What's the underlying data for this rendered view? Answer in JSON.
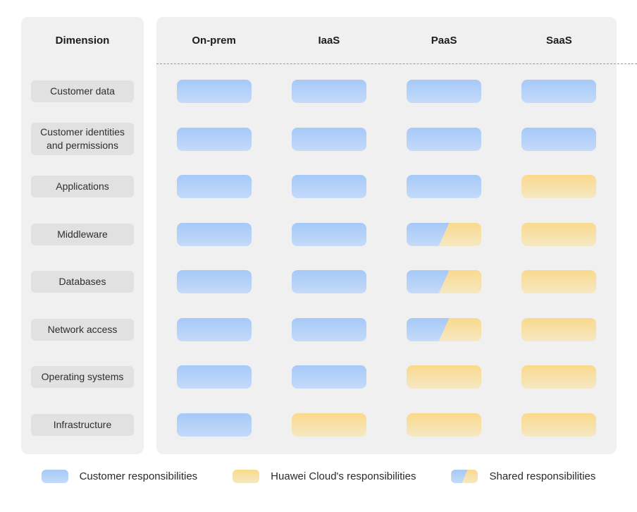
{
  "header": {
    "dimension_label": "Dimension",
    "columns": [
      "On-prem",
      "IaaS",
      "PaaS",
      "SaaS"
    ]
  },
  "rows": [
    {
      "label": "Customer data",
      "cells": [
        "customer",
        "customer",
        "customer",
        "customer"
      ]
    },
    {
      "label": "Customer identities and permissions",
      "cells": [
        "customer",
        "customer",
        "customer",
        "customer"
      ]
    },
    {
      "label": "Applications",
      "cells": [
        "customer",
        "customer",
        "customer",
        "huawei"
      ]
    },
    {
      "label": "Middleware",
      "cells": [
        "customer",
        "customer",
        "shared",
        "huawei"
      ]
    },
    {
      "label": "Databases",
      "cells": [
        "customer",
        "customer",
        "shared",
        "huawei"
      ]
    },
    {
      "label": "Network access",
      "cells": [
        "customer",
        "customer",
        "shared",
        "huawei"
      ]
    },
    {
      "label": "Operating systems",
      "cells": [
        "customer",
        "customer",
        "huawei",
        "huawei"
      ]
    },
    {
      "label": "Infrastructure",
      "cells": [
        "customer",
        "huawei",
        "huawei",
        "huawei"
      ]
    }
  ],
  "legend": [
    {
      "type": "customer",
      "label": "Customer responsibilities"
    },
    {
      "type": "huawei",
      "label": "Huawei Cloud's responsibilities"
    },
    {
      "type": "shared",
      "label": "Shared responsibilities"
    }
  ],
  "colors": {
    "panel_bg": "#f0f0f0",
    "label_bg": "#e1e1e1",
    "blue_top": "#a6c9f8",
    "blue_bottom": "#c4daf9",
    "yellow_top": "#fad98c",
    "yellow_bottom": "#f5e8c3",
    "divider": "#9c9c9c"
  }
}
